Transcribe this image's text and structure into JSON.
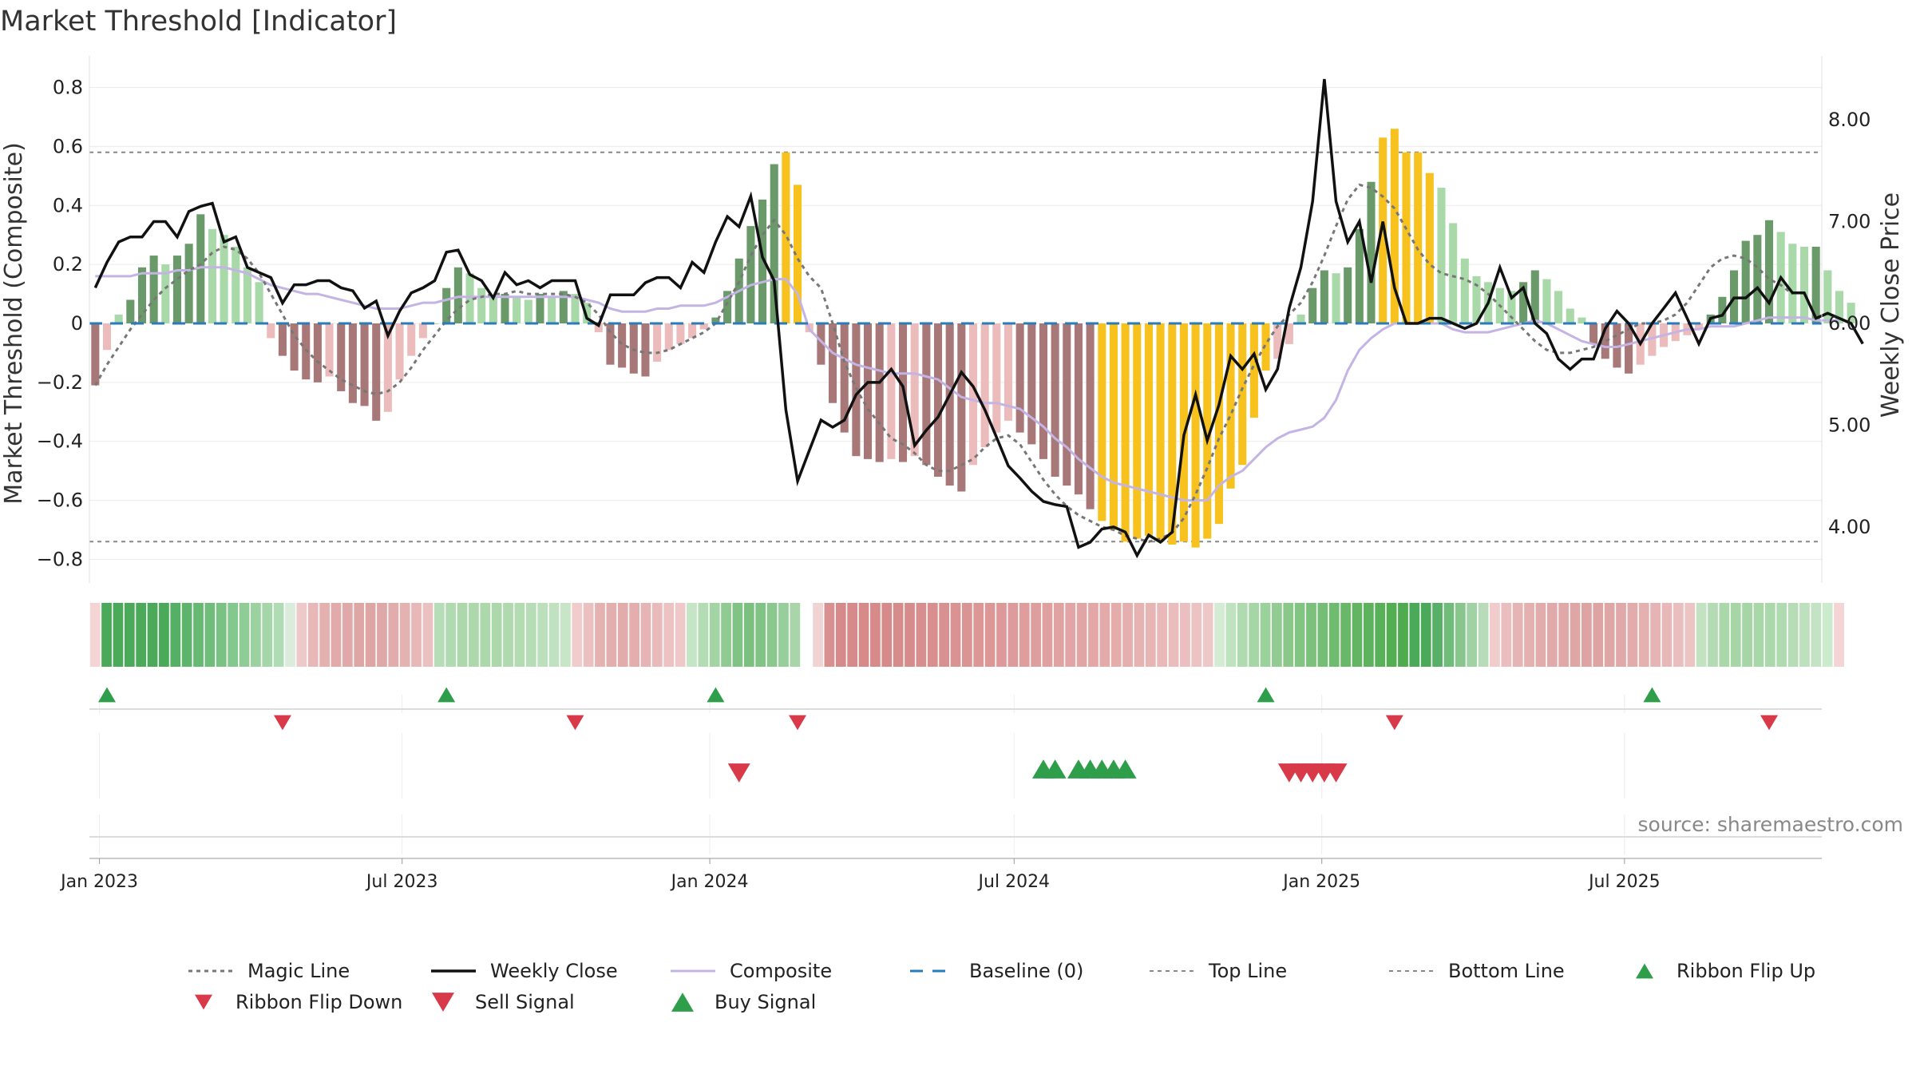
{
  "chart_data": {
    "type": "bar",
    "title": "Market Threshold [Indicator]",
    "ylabel_left": "Market Threshold (Composite)",
    "ylabel_right": "Weekly Close Price",
    "source": "source: sharemaestro.com",
    "x_start": "2022-12-26",
    "x_end": "2025-10-27",
    "left_ylim": [
      -0.88,
      0.88
    ],
    "right_ylim": [
      3.45,
      8.55
    ],
    "left_ticks": [
      {
        "v": 0.8,
        "label": "0.8"
      },
      {
        "v": 0.6,
        "label": "0.6"
      },
      {
        "v": 0.4,
        "label": "0.4"
      },
      {
        "v": 0.2,
        "label": "0.2"
      },
      {
        "v": 0,
        "label": "0"
      },
      {
        "v": -0.2,
        "label": "−0.2"
      },
      {
        "v": -0.4,
        "label": "−0.4"
      },
      {
        "v": -0.6,
        "label": "−0.6"
      },
      {
        "v": -0.8,
        "label": "−0.8"
      }
    ],
    "right_ticks": [
      {
        "v": 8,
        "label": "8.00"
      },
      {
        "v": 7,
        "label": "7.00"
      },
      {
        "v": 6,
        "label": "6.00"
      },
      {
        "v": 5,
        "label": "5.00"
      },
      {
        "v": 4,
        "label": "4.00"
      }
    ],
    "x_ticks": [
      {
        "date": "2023-01-01",
        "label": "Jan 2023"
      },
      {
        "date": "2023-07-01",
        "label": "Jul 2023"
      },
      {
        "date": "2024-01-01",
        "label": "Jan 2024"
      },
      {
        "date": "2024-07-01",
        "label": "Jul 2024"
      },
      {
        "date": "2025-01-01",
        "label": "Jan 2025"
      },
      {
        "date": "2025-07-01",
        "label": "Jul 2025"
      }
    ],
    "top_line": 0.58,
    "bottom_line": -0.74,
    "baseline": 0,
    "colors": {
      "strong_pos": "#6a9a6a",
      "weak_pos": "#a9d8a9",
      "strong_neg": "#a87878",
      "weak_neg": "#ecbcbc",
      "extreme": "#f7c21d",
      "close": "#111111",
      "composite": "#c4b4e4",
      "magic": "#777777",
      "baseline": "#2b7bb9",
      "threshold": "#888888",
      "buy": "#2e9e4a",
      "sell": "#d83a4a"
    },
    "composite_bars": [
      -0.21,
      -0.09,
      0.03,
      0.08,
      0.19,
      0.23,
      0.2,
      0.23,
      0.27,
      0.37,
      0.32,
      0.3,
      0.26,
      0.19,
      0.14,
      -0.05,
      -0.11,
      -0.16,
      -0.19,
      -0.2,
      -0.18,
      -0.23,
      -0.27,
      -0.28,
      -0.33,
      -0.3,
      -0.19,
      -0.11,
      -0.05,
      0.0,
      0.12,
      0.19,
      0.17,
      0.12,
      0.09,
      0.1,
      0.09,
      0.08,
      0.1,
      0.09,
      0.11,
      0.1,
      0.07,
      -0.03,
      -0.14,
      -0.15,
      -0.17,
      -0.18,
      -0.13,
      -0.09,
      -0.07,
      -0.05,
      -0.02,
      0.02,
      0.11,
      0.22,
      0.33,
      0.42,
      0.54,
      0.58,
      0.47,
      -0.03,
      -0.14,
      -0.27,
      -0.37,
      -0.45,
      -0.46,
      -0.47,
      -0.46,
      -0.47,
      -0.45,
      -0.48,
      -0.52,
      -0.55,
      -0.57,
      -0.48,
      -0.42,
      -0.37,
      -0.33,
      -0.37,
      -0.41,
      -0.46,
      -0.52,
      -0.55,
      -0.58,
      -0.63,
      -0.67,
      -0.7,
      -0.74,
      -0.73,
      -0.72,
      -0.74,
      -0.75,
      -0.74,
      -0.76,
      -0.73,
      -0.68,
      -0.56,
      -0.48,
      -0.32,
      -0.16,
      -0.12,
      -0.07,
      0.03,
      0.12,
      0.18,
      0.17,
      0.19,
      0.32,
      0.48,
      0.63,
      0.66,
      0.58,
      0.58,
      0.51,
      0.46,
      0.34,
      0.22,
      0.16,
      0.14,
      0.12,
      0.11,
      0.14,
      0.18,
      0.15,
      0.11,
      0.05,
      0.02,
      -0.07,
      -0.12,
      -0.15,
      -0.17,
      -0.14,
      -0.11,
      -0.08,
      -0.06,
      -0.04,
      -0.02,
      0.03,
      0.09,
      0.18,
      0.28,
      0.3,
      0.35,
      0.31,
      0.27,
      0.26,
      0.26,
      0.18,
      0.11,
      0.07
    ],
    "extreme_weeks": [
      59,
      60,
      86,
      87,
      88,
      89,
      90,
      91,
      92,
      93,
      94,
      95,
      96,
      97,
      98,
      99,
      100,
      110,
      111,
      112,
      113,
      114
    ],
    "weekly_close": [
      6.35,
      6.6,
      6.8,
      6.85,
      6.85,
      7.0,
      7.0,
      6.85,
      7.1,
      7.15,
      7.18,
      6.8,
      6.85,
      6.55,
      6.5,
      6.45,
      6.2,
      6.38,
      6.38,
      6.42,
      6.42,
      6.35,
      6.32,
      6.15,
      6.22,
      5.88,
      6.12,
      6.3,
      6.35,
      6.42,
      6.7,
      6.72,
      6.48,
      6.42,
      6.25,
      6.5,
      6.38,
      6.42,
      6.35,
      6.42,
      6.42,
      6.42,
      6.05,
      5.98,
      6.28,
      6.28,
      6.28,
      6.4,
      6.45,
      6.45,
      6.35,
      6.6,
      6.5,
      6.8,
      7.05,
      6.95,
      7.25,
      6.65,
      6.42,
      5.15,
      4.45,
      4.75,
      5.05,
      4.98,
      5.05,
      5.3,
      5.42,
      5.42,
      5.55,
      5.38,
      4.8,
      4.95,
      5.08,
      5.3,
      5.52,
      5.38,
      5.15,
      4.88,
      4.6,
      4.48,
      4.35,
      4.25,
      4.22,
      4.2,
      3.8,
      3.85,
      3.98,
      4.0,
      3.95,
      3.72,
      3.92,
      3.85,
      3.95,
      4.9,
      5.3,
      4.85,
      5.2,
      5.68,
      5.55,
      5.7,
      5.35,
      5.55,
      6.15,
      6.55,
      7.2,
      8.4,
      7.2,
      6.8,
      7.0,
      6.4,
      7.0,
      6.35,
      6.0,
      6.0,
      6.05,
      6.05,
      6.0,
      5.95,
      6.0,
      6.2,
      6.55,
      6.25,
      6.35,
      6.0,
      5.9,
      5.65,
      5.55,
      5.65,
      5.65,
      5.95,
      6.12,
      6.0,
      5.8,
      6.0,
      6.15,
      6.3,
      6.05,
      5.8,
      6.05,
      6.08,
      6.25,
      6.25,
      6.35,
      6.2,
      6.45,
      6.3,
      6.3,
      6.05,
      6.1,
      6.05,
      6.0,
      5.8
    ],
    "composite_line": [
      0.16,
      0.16,
      0.16,
      0.16,
      0.17,
      0.17,
      0.17,
      0.18,
      0.18,
      0.19,
      0.19,
      0.19,
      0.18,
      0.17,
      0.15,
      0.13,
      0.12,
      0.11,
      0.1,
      0.1,
      0.09,
      0.08,
      0.07,
      0.06,
      0.05,
      0.05,
      0.05,
      0.06,
      0.07,
      0.07,
      0.08,
      0.09,
      0.09,
      0.09,
      0.09,
      0.09,
      0.09,
      0.09,
      0.09,
      0.09,
      0.09,
      0.09,
      0.08,
      0.07,
      0.05,
      0.04,
      0.04,
      0.04,
      0.05,
      0.05,
      0.06,
      0.06,
      0.06,
      0.07,
      0.09,
      0.11,
      0.13,
      0.14,
      0.15,
      0.15,
      0.1,
      -0.02,
      -0.06,
      -0.1,
      -0.12,
      -0.14,
      -0.15,
      -0.16,
      -0.17,
      -0.17,
      -0.17,
      -0.18,
      -0.19,
      -0.22,
      -0.25,
      -0.26,
      -0.27,
      -0.27,
      -0.28,
      -0.29,
      -0.32,
      -0.35,
      -0.39,
      -0.42,
      -0.46,
      -0.49,
      -0.52,
      -0.54,
      -0.55,
      -0.56,
      -0.57,
      -0.58,
      -0.59,
      -0.6,
      -0.6,
      -0.6,
      -0.55,
      -0.52,
      -0.5,
      -0.46,
      -0.42,
      -0.39,
      -0.37,
      -0.36,
      -0.35,
      -0.32,
      -0.26,
      -0.16,
      -0.09,
      -0.05,
      -0.02,
      0.0,
      0.0,
      0.0,
      0.0,
      0.0,
      -0.02,
      -0.03,
      -0.03,
      -0.03,
      -0.02,
      -0.01,
      0.0,
      0.01,
      0.0,
      -0.02,
      -0.04,
      -0.06,
      -0.07,
      -0.08,
      -0.08,
      -0.07,
      -0.06,
      -0.05,
      -0.04,
      -0.03,
      -0.02,
      -0.02,
      -0.01,
      -0.01,
      -0.01,
      0.0,
      0.01,
      0.02,
      0.02,
      0.02,
      0.02,
      0.01,
      0.01,
      0.01
    ],
    "magic_line": [
      -0.21,
      -0.14,
      -0.08,
      -0.02,
      0.03,
      0.08,
      0.12,
      0.15,
      0.18,
      0.2,
      0.24,
      0.26,
      0.25,
      0.22,
      0.17,
      0.1,
      0.03,
      -0.04,
      -0.09,
      -0.13,
      -0.16,
      -0.19,
      -0.21,
      -0.23,
      -0.24,
      -0.23,
      -0.2,
      -0.15,
      -0.09,
      -0.04,
      0.01,
      0.05,
      0.08,
      0.09,
      0.1,
      0.1,
      0.11,
      0.1,
      0.1,
      0.1,
      0.1,
      0.09,
      0.07,
      0.03,
      -0.03,
      -0.07,
      -0.09,
      -0.1,
      -0.1,
      -0.09,
      -0.07,
      -0.05,
      -0.03,
      0.0,
      0.07,
      0.14,
      0.23,
      0.3,
      0.35,
      0.3,
      0.22,
      0.16,
      0.12,
      0.0,
      -0.13,
      -0.22,
      -0.29,
      -0.34,
      -0.39,
      -0.41,
      -0.44,
      -0.48,
      -0.5,
      -0.5,
      -0.48,
      -0.46,
      -0.42,
      -0.39,
      -0.38,
      -0.41,
      -0.47,
      -0.53,
      -0.58,
      -0.62,
      -0.65,
      -0.67,
      -0.69,
      -0.7,
      -0.72,
      -0.73,
      -0.74,
      -0.73,
      -0.71,
      -0.66,
      -0.58,
      -0.49,
      -0.39,
      -0.31,
      -0.22,
      -0.14,
      -0.07,
      -0.01,
      0.03,
      0.07,
      0.14,
      0.23,
      0.33,
      0.42,
      0.47,
      0.46,
      0.43,
      0.39,
      0.32,
      0.25,
      0.2,
      0.17,
      0.16,
      0.15,
      0.13,
      0.1,
      0.06,
      0.02,
      -0.02,
      -0.06,
      -0.09,
      -0.1,
      -0.1,
      -0.09,
      -0.08,
      -0.06,
      -0.04,
      -0.02,
      0.0,
      0.0,
      0.01,
      0.03,
      0.07,
      0.13,
      0.19,
      0.22,
      0.23,
      0.22,
      0.19,
      0.15,
      0.13,
      0.1
    ],
    "ribbon_colors": [
      "#f4d4d4",
      "#4aaa5a",
      "#4aaa5a",
      "#4aaa5a",
      "#4aaa5a",
      "#4aaa5a",
      "#4aaa5a",
      "#55b065",
      "#5eb46c",
      "#66b873",
      "#70bc7b",
      "#7ac284",
      "#85c88d",
      "#90cd96",
      "#9bd2a0",
      "#a5d6aa",
      "#b0dcb4",
      "#dcecdc",
      "#eec9c9",
      "#e8b8b8",
      "#e5b0b0",
      "#e2aaaa",
      "#e0a8a8",
      "#dfa6a6",
      "#dea5a5",
      "#dfa8a8",
      "#e2acac",
      "#e5b2b2",
      "#e8b8b8",
      "#ebc0c0",
      "#b6dcb8",
      "#b0daaf",
      "#acd8ac",
      "#acd8ac",
      "#acd8ac",
      "#acd8ac",
      "#b0d9b0",
      "#b3dcb3",
      "#b6ddb6",
      "#bbe0bb",
      "#c1e2c1",
      "#c8e5c8",
      "#f0cccc",
      "#ebc0c0",
      "#e5b2b2",
      "#e3aeae",
      "#e2acac",
      "#e3aeae",
      "#e6b4b4",
      "#e9baba",
      "#ecc2c2",
      "#efc9c9",
      "#c6e4c6",
      "#b4dcb4",
      "#a2d4a4",
      "#90cb92",
      "#80c384",
      "#7bc07f",
      "#80c384",
      "#8ac88d",
      "#98ce9b",
      "#a8d6aa",
      "#ffffff",
      "#f0d4d4",
      "#d99090",
      "#d68a8a",
      "#d68a8a",
      "#d68a8a",
      "#d68a8a",
      "#d68a8a",
      "#d78c8c",
      "#d78c8c",
      "#d88e8e",
      "#d98f8f",
      "#d99090",
      "#da9292",
      "#db9494",
      "#dc9696",
      "#dc9797",
      "#dd9999",
      "#de9b9b",
      "#df9d9d",
      "#df9e9e",
      "#e0a0a0",
      "#e1a2a2",
      "#e2a4a4",
      "#e2a5a5",
      "#e3a7a7",
      "#e4aaaa",
      "#e5acac",
      "#e6afaf",
      "#e7b2b2",
      "#e8b5b5",
      "#e9b8b8",
      "#eabcbc",
      "#ebbfbf",
      "#ecc3c3",
      "#eec8c8",
      "#d4ebd4",
      "#bfe2bf",
      "#b0dbb0",
      "#a5d6a5",
      "#9bd19b",
      "#92cc92",
      "#8ac88a",
      "#82c482",
      "#7bc17b",
      "#75be75",
      "#6fbb6f",
      "#69b869",
      "#63b563",
      "#5db25d",
      "#58b058",
      "#53ad53",
      "#4eab4e",
      "#4aaa5a",
      "#4aaa5a",
      "#58b068",
      "#70bc7a",
      "#88c68e",
      "#a0d2a4",
      "#b8dcba",
      "#f0cccc",
      "#eabebe",
      "#e6b4b4",
      "#e4b0b0",
      "#e2acac",
      "#e1aaaa",
      "#e0a8a8",
      "#dfa6a6",
      "#dea4a4",
      "#dea4a4",
      "#dfa6a6",
      "#e0a8a8",
      "#e2acac",
      "#e4b0b0",
      "#e6b4b4",
      "#e8b8b8",
      "#eabebe",
      "#ecc4c4",
      "#c2e2c2",
      "#b4dcb4",
      "#aad8aa",
      "#a6d6a6",
      "#a6d6a6",
      "#a8d7a8",
      "#acd9ac",
      "#b0dab0",
      "#b6ddb6",
      "#bde0bd",
      "#c4e3c4",
      "#ccebcc",
      "#f4d4d4"
    ],
    "flip_up_weeks": [
      1,
      30,
      53,
      100,
      133
    ],
    "flip_down_weeks": [
      16,
      41,
      60,
      111,
      143
    ],
    "sell_signal_weeks": [
      55,
      102,
      103,
      104,
      105,
      106
    ],
    "buy_signal_weeks": [
      81,
      82,
      84,
      85,
      86,
      87,
      88
    ]
  },
  "legend": [
    {
      "key": "magic",
      "label": "Magic Line"
    },
    {
      "key": "close",
      "label": "Weekly Close"
    },
    {
      "key": "composite",
      "label": "Composite"
    },
    {
      "key": "baseline",
      "label": "Baseline (0)"
    },
    {
      "key": "top",
      "label": "Top Line"
    },
    {
      "key": "bottom",
      "label": "Bottom Line"
    },
    {
      "key": "flipup",
      "label": "Ribbon Flip Up"
    },
    {
      "key": "flipdown",
      "label": "Ribbon Flip Down"
    },
    {
      "key": "sell",
      "label": "Sell Signal"
    },
    {
      "key": "buy",
      "label": "Buy Signal"
    }
  ]
}
